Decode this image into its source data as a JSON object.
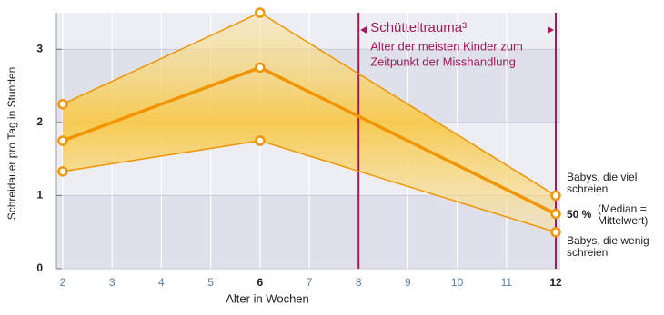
{
  "chart_data": {
    "type": "line",
    "xlabel": "Alter in Wochen",
    "ylabel": "Schreidauer pro Tag in Stunden",
    "xlim": [
      2,
      12
    ],
    "ylim": [
      0,
      3.5
    ],
    "xticks": [
      2,
      3,
      4,
      5,
      6,
      7,
      8,
      9,
      10,
      11,
      12
    ],
    "xticks_bold": [
      6,
      12
    ],
    "yticks": [
      0,
      1,
      2,
      3
    ],
    "grid": true,
    "series": [
      {
        "name": "Babys, die viel schreien",
        "color": "#f29400",
        "x": [
          2,
          6,
          12
        ],
        "values": [
          2.25,
          3.5,
          1
        ]
      },
      {
        "name": "50 % (Median = Mittelwert)",
        "color": "#f29400",
        "x": [
          2,
          6,
          12
        ],
        "values": [
          1.75,
          2.75,
          0.75
        ]
      },
      {
        "name": "Babys, die wenig schreien",
        "color": "#f29400",
        "x": [
          2,
          6,
          12
        ],
        "values": [
          1.33,
          1.75,
          0.5
        ]
      }
    ],
    "series_labels": [
      {
        "lines": [
          "Babys, die viel",
          "schreien"
        ]
      },
      {
        "bold": "50 %",
        "lines": [
          "(Median =",
          "Mittelwert)"
        ]
      },
      {
        "lines": [
          "Babys, die wenig",
          "schreien"
        ]
      }
    ],
    "highlight": {
      "x": [
        8,
        12
      ],
      "color": "#a3195b",
      "title": "Schütteltrauma³",
      "lines": [
        "Alter der meisten Kinder zum",
        "Zeitpunkt der Misshandlung"
      ]
    }
  }
}
